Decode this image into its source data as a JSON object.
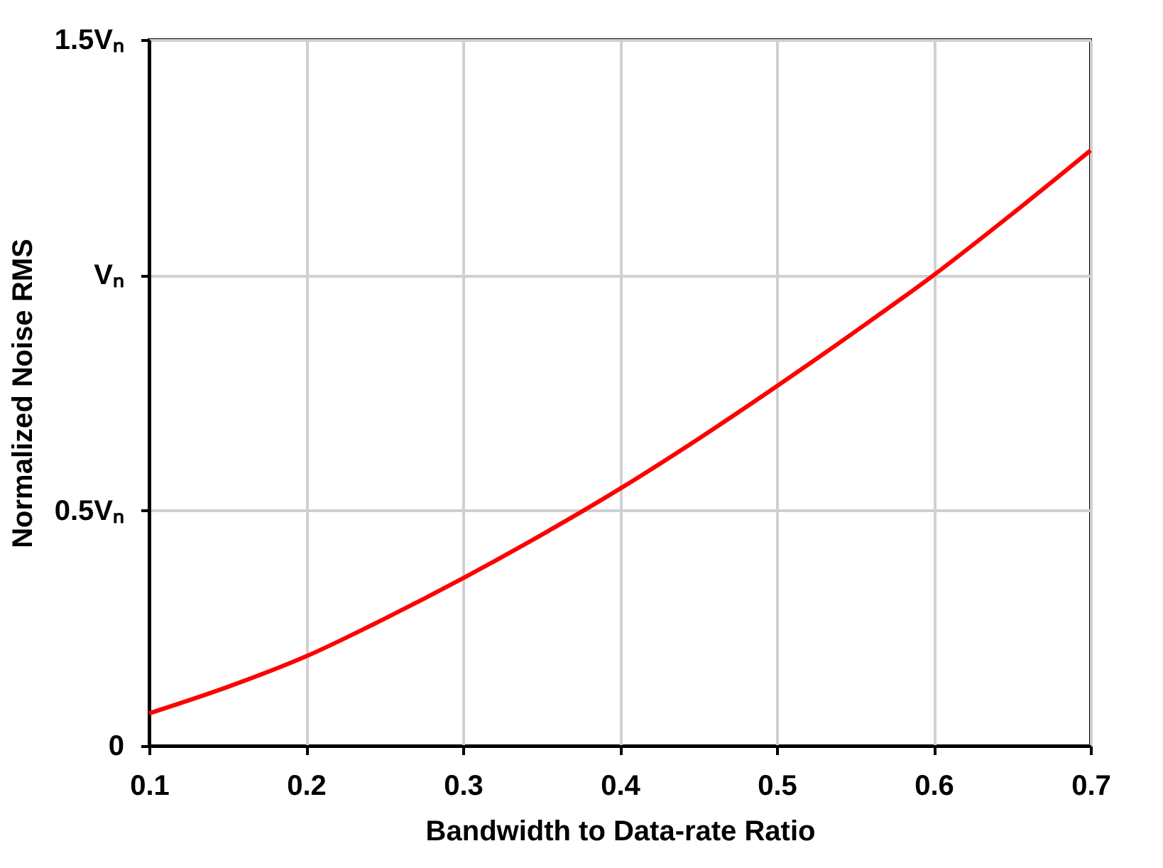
{
  "chart_data": {
    "type": "line",
    "xlabel": "Bandwidth to Data-rate Ratio",
    "ylabel": "Normalized Noise RMS",
    "x": [
      0.1,
      0.15,
      0.2,
      0.25,
      0.3,
      0.35,
      0.4,
      0.45,
      0.5,
      0.55,
      0.6,
      0.65,
      0.7
    ],
    "series": [
      {
        "color": "#ff0000",
        "values": [
          0.069,
          0.125,
          0.19,
          0.27,
          0.356,
          0.448,
          0.546,
          0.652,
          0.764,
          0.88,
          1.0,
          1.13,
          1.265
        ]
      }
    ],
    "xlim": [
      0.1,
      0.7
    ],
    "xticks": [
      0.1,
      0.2,
      0.3,
      0.4,
      0.5,
      0.6,
      0.7
    ],
    "ylim": [
      0,
      1.5
    ],
    "yticks": [
      0,
      {
        "value": 0.5,
        "label": "0.5Vₙ"
      },
      {
        "value": 1,
        "label": "Vₙ"
      },
      {
        "value": 1.5,
        "label": "1.5Vₙ"
      }
    ],
    "grid": true,
    "marker": "none",
    "line_style": "solid"
  }
}
